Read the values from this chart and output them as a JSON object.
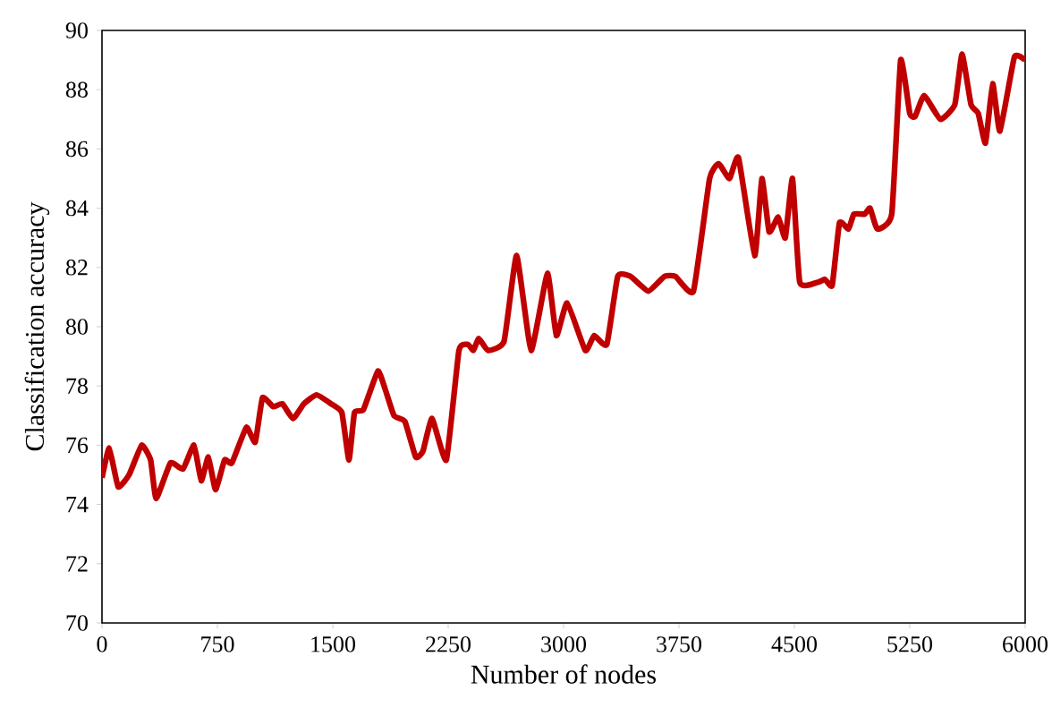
{
  "chart_data": {
    "type": "line",
    "xlabel": "Number of nodes",
    "ylabel": "Classification accuracy",
    "x": [
      0,
      47,
      105,
      176,
      258,
      316,
      352,
      445,
      527,
      598,
      645,
      691,
      738,
      797,
      844,
      938,
      996,
      1043,
      1113,
      1172,
      1242,
      1313,
      1395,
      1488,
      1559,
      1605,
      1641,
      1699,
      1793,
      1840,
      1898,
      1969,
      2039,
      2086,
      2145,
      2238,
      2320,
      2379,
      2414,
      2449,
      2508,
      2613,
      2695,
      2789,
      2895,
      2953,
      3023,
      3141,
      3199,
      3281,
      3352,
      3434,
      3551,
      3656,
      3727,
      3844,
      3949,
      4008,
      4078,
      4137,
      4242,
      4289,
      4336,
      4395,
      4441,
      4488,
      4535,
      4652,
      4699,
      4746,
      4793,
      4852,
      4887,
      4957,
      4992,
      5039,
      5133,
      5191,
      5250,
      5285,
      5344,
      5449,
      5543,
      5590,
      5648,
      5695,
      5742,
      5789,
      5836,
      5930,
      6000
    ],
    "series": [
      {
        "color": "#c00000",
        "values": [
          74.9,
          75.9,
          74.6,
          75.0,
          76.0,
          75.5,
          74.2,
          75.4,
          75.2,
          76.0,
          74.8,
          75.6,
          74.5,
          75.5,
          75.4,
          76.6,
          76.1,
          77.6,
          77.3,
          77.4,
          76.9,
          77.4,
          77.7,
          77.4,
          77.1,
          75.5,
          77.1,
          77.2,
          78.5,
          77.9,
          77.0,
          76.8,
          75.6,
          75.8,
          76.9,
          75.5,
          79.2,
          79.4,
          79.2,
          79.6,
          79.2,
          79.5,
          82.4,
          79.2,
          81.8,
          79.7,
          80.8,
          79.2,
          79.7,
          79.4,
          81.7,
          81.7,
          81.2,
          81.7,
          81.7,
          81.2,
          85.0,
          85.5,
          85.0,
          85.7,
          82.4,
          85.0,
          83.2,
          83.7,
          83.0,
          85.0,
          81.5,
          81.5,
          81.6,
          81.4,
          83.5,
          83.3,
          83.8,
          83.8,
          84.0,
          83.3,
          83.8,
          89.0,
          87.2,
          87.1,
          87.8,
          87.0,
          87.5,
          89.2,
          87.5,
          87.2,
          86.2,
          88.2,
          86.6,
          89.1,
          89.0
        ]
      }
    ],
    "xlim": [
      0,
      6000
    ],
    "ylim": [
      70,
      90
    ],
    "xticks": [
      0,
      750,
      1500,
      2250,
      3000,
      3750,
      4500,
      5250,
      6000
    ],
    "yticks": [
      70,
      72,
      74,
      76,
      78,
      80,
      82,
      84,
      86,
      88,
      90
    ],
    "marker": "none",
    "line_style": "solid"
  }
}
